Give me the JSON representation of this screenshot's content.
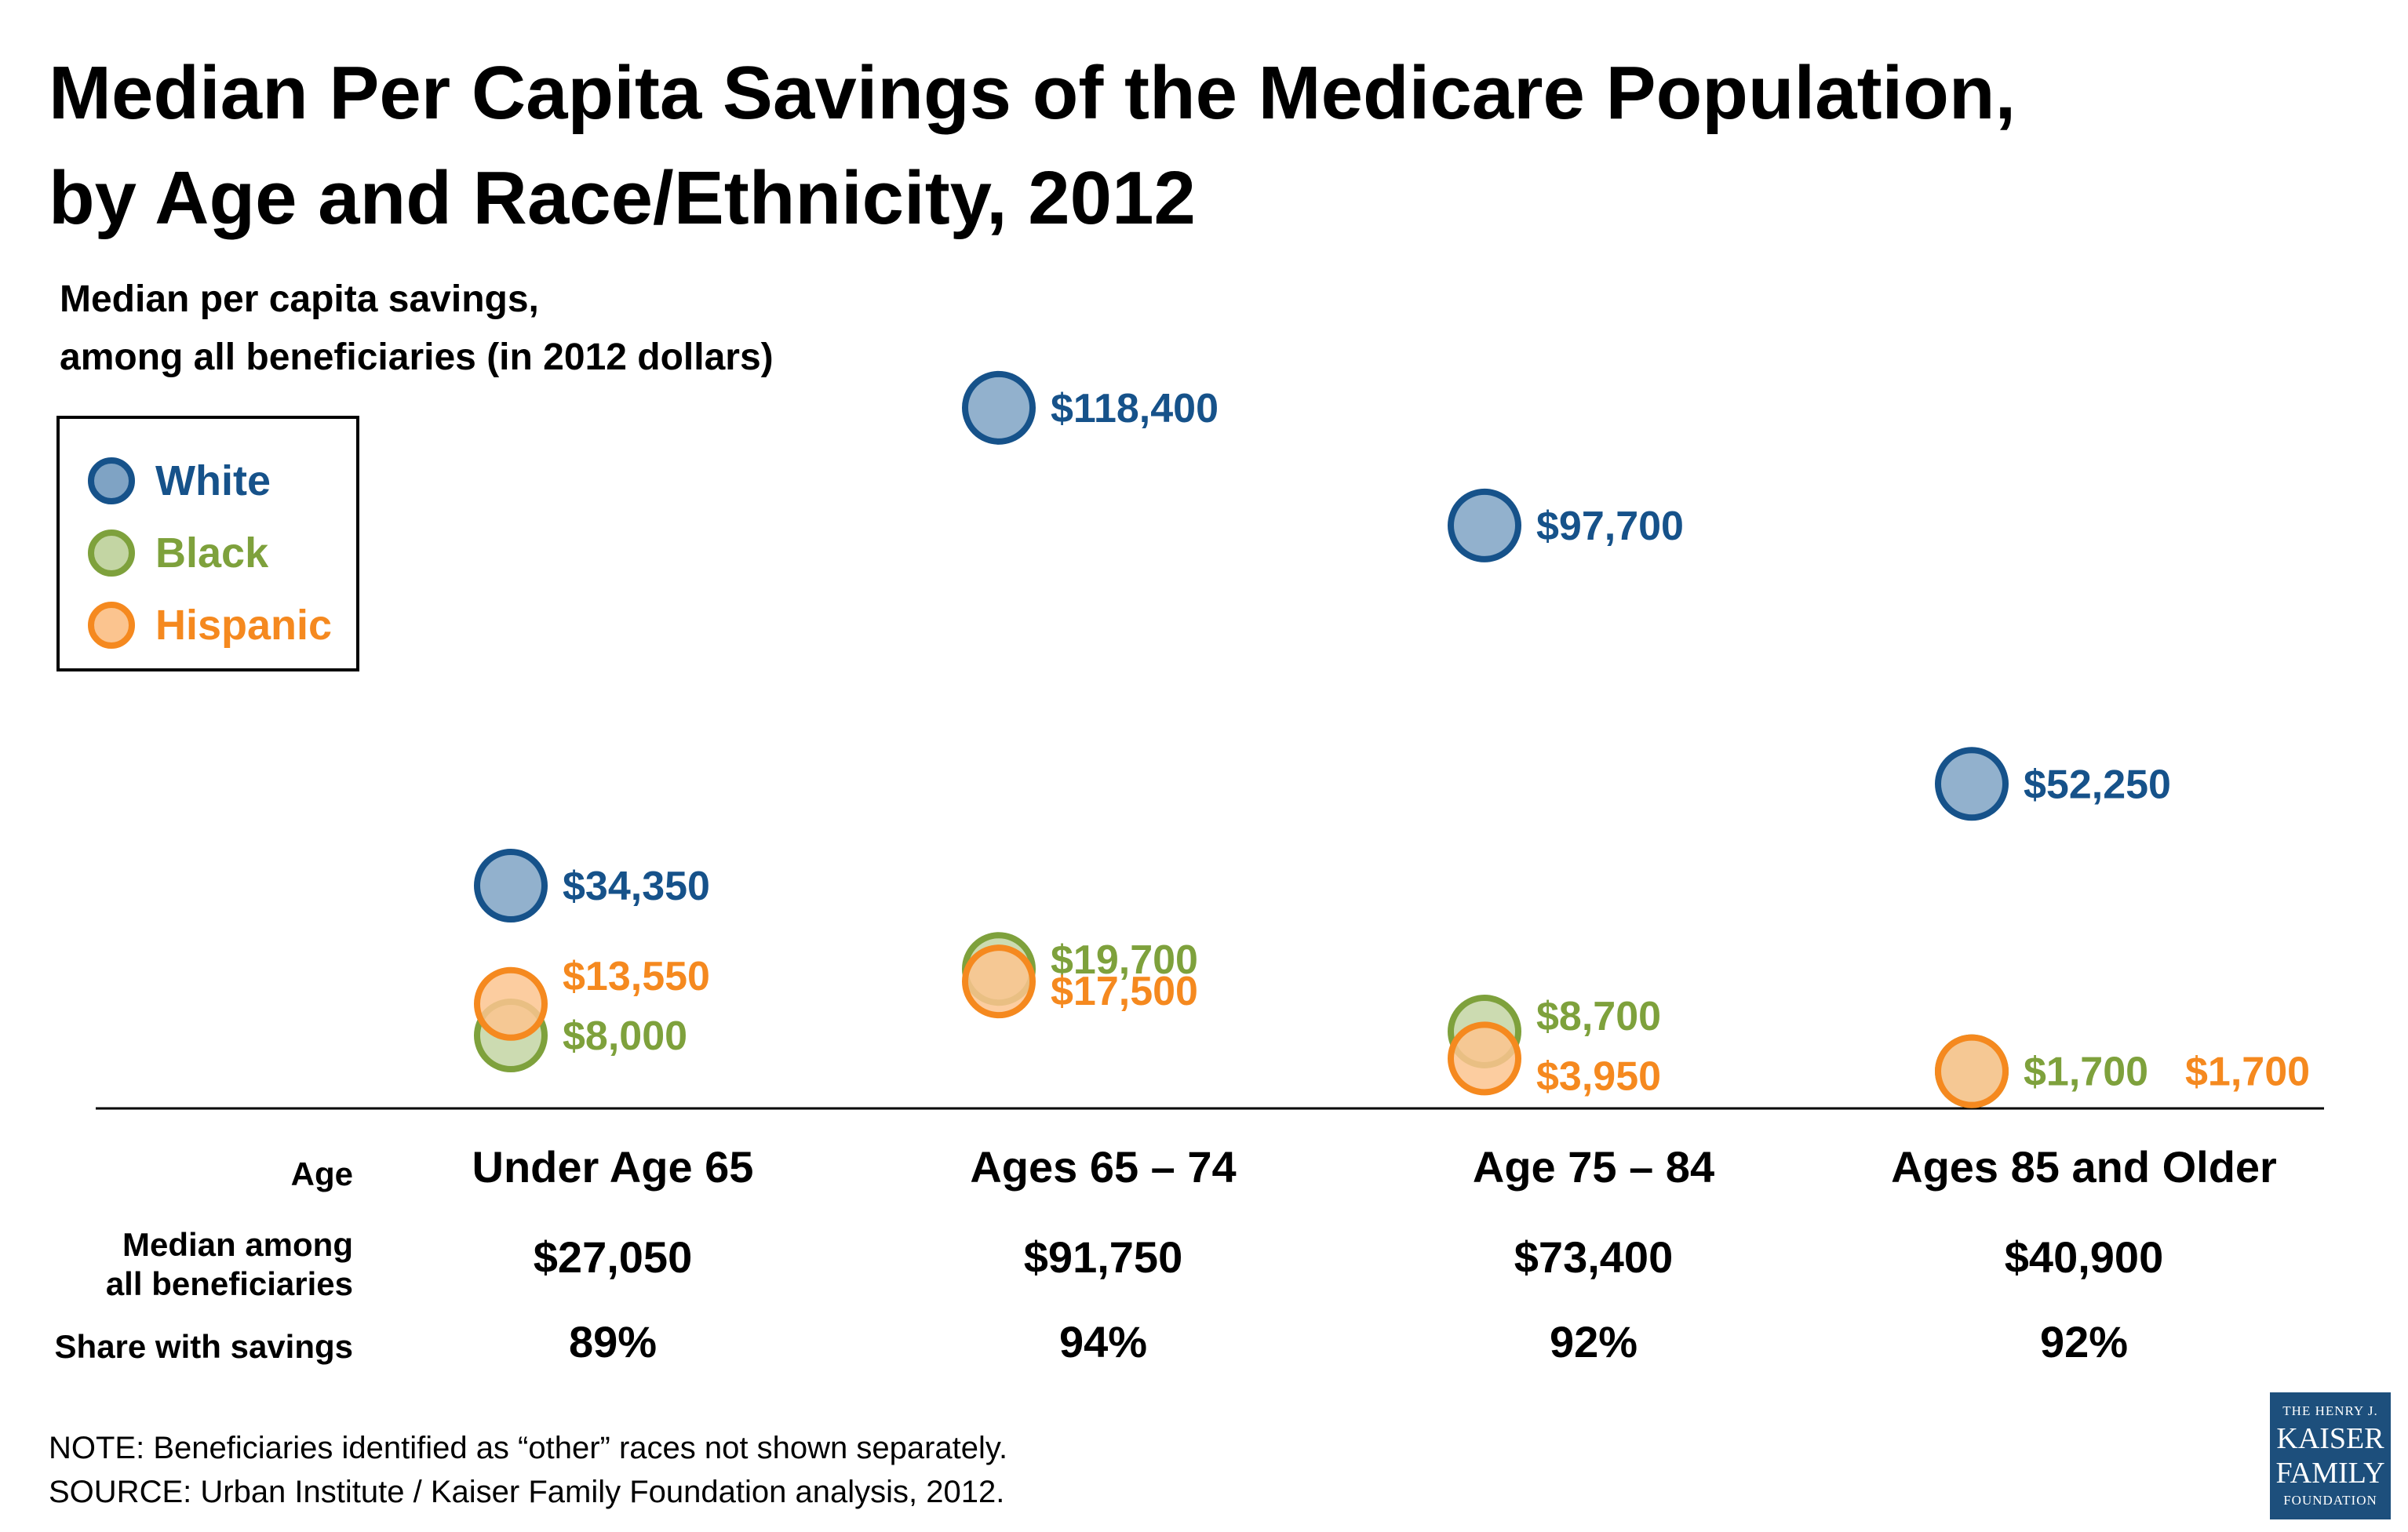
{
  "title_line1": "Median Per Capita Savings of the Medicare Population,",
  "title_line2": "by Age and Race/Ethnicity, 2012",
  "subtitle_line1": "Median per capita savings,",
  "subtitle_line2": "among all beneficiaries (in 2012 dollars)",
  "legend": [
    {
      "label": "White",
      "color": "#16528a",
      "fill": "#7fa3c4"
    },
    {
      "label": "Black",
      "color": "#7ea13c",
      "fill": "#c3d5a3"
    },
    {
      "label": "Hispanic",
      "color": "#f5891f",
      "fill": "#fbc48f"
    }
  ],
  "chart_data": {
    "type": "scatter",
    "categories": [
      "Under Age 65",
      "Ages 65 – 74",
      "Age 75 – 84",
      "Ages 85 and Older"
    ],
    "series": [
      {
        "name": "White",
        "values": [
          34350,
          118400,
          97700,
          52250
        ],
        "labels": [
          "$34,350",
          "$118,400",
          "$97,700",
          "$52,250"
        ]
      },
      {
        "name": "Black",
        "values": [
          8000,
          19700,
          8700,
          1700
        ],
        "labels": [
          "$8,000",
          "$19,700",
          "$8,700",
          "$1,700"
        ]
      },
      {
        "name": "Hispanic",
        "values": [
          13550,
          17500,
          3950,
          1700
        ],
        "labels": [
          "$13,550",
          "$17,500",
          "$3,950",
          "$1,700"
        ]
      }
    ],
    "ylim": [
      0,
      125000
    ]
  },
  "table": {
    "row_labels": {
      "age": "Age",
      "median_line1": "Median among",
      "median_line2": "all beneficiaries",
      "share": "Share with savings"
    },
    "ages": [
      "Under Age 65",
      "Ages 65 – 74",
      "Age 75 – 84",
      "Ages 85 and Older"
    ],
    "medians": [
      "$27,050",
      "$91,750",
      "$73,400",
      "$40,900"
    ],
    "shares": [
      "89%",
      "94%",
      "92%",
      "92%"
    ]
  },
  "note": "NOTE: Beneficiaries identified as “other” races not shown separately.",
  "source": "SOURCE: Urban Institute / Kaiser Family Foundation analysis, 2012.",
  "logo": {
    "line1": "THE HENRY J.",
    "line2": "KAISER",
    "line3": "FAMILY",
    "line4": "FOUNDATION"
  }
}
